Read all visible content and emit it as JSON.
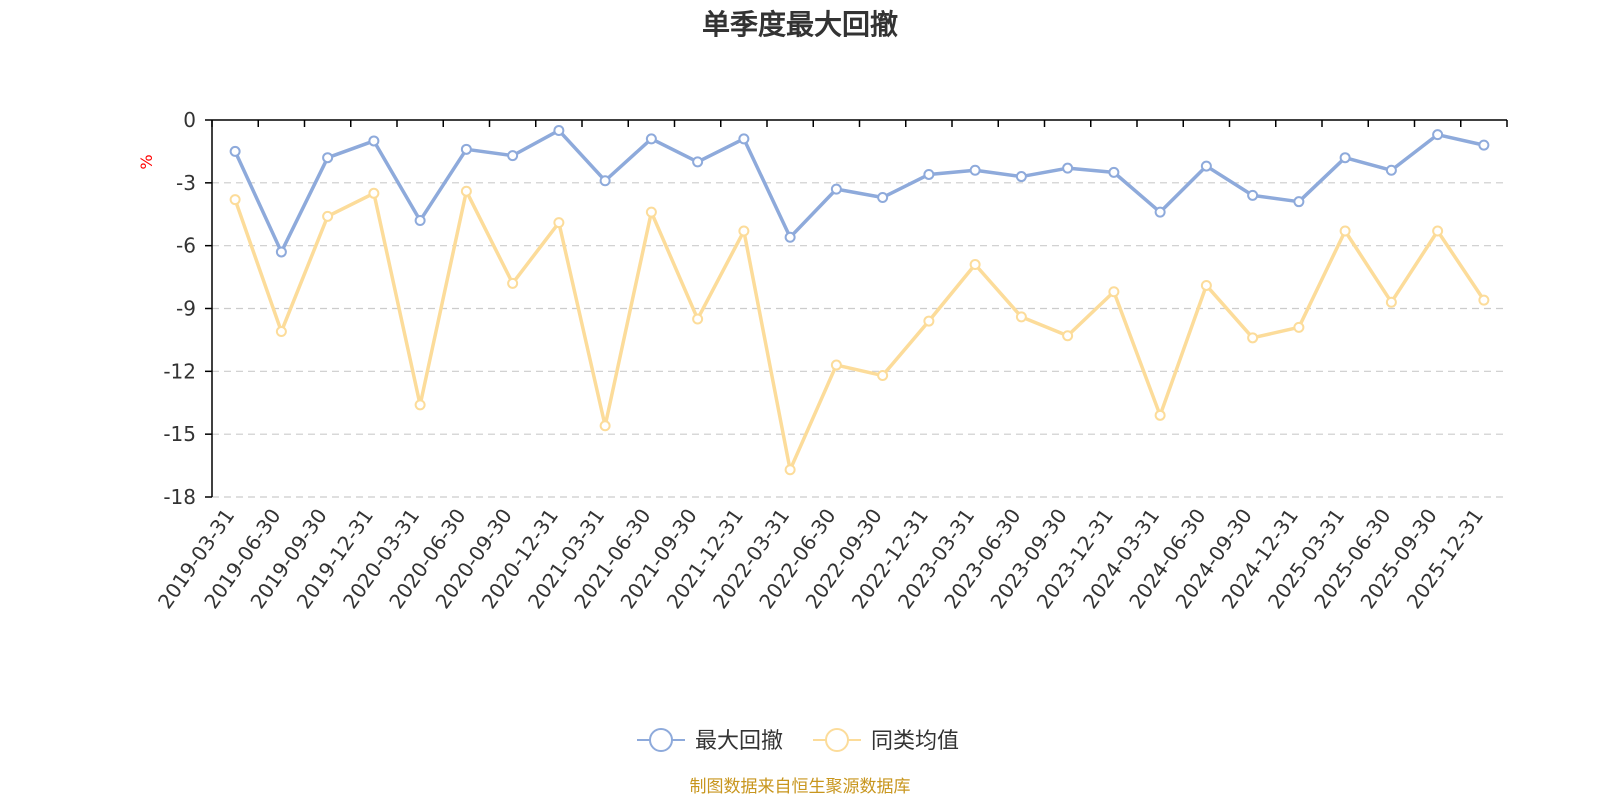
{
  "chart_data": {
    "type": "line",
    "title": "单季度最大回撤",
    "ylabel": "%",
    "ylim": [
      -18,
      0
    ],
    "yticks": [
      0,
      -3,
      -6,
      -9,
      -12,
      -15,
      -18
    ],
    "grid": true,
    "legend_position": "bottom-center",
    "categories": [
      "2019-03-31",
      "2019-06-30",
      "2019-09-30",
      "2019-12-31",
      "2020-03-31",
      "2020-06-30",
      "2020-09-30",
      "2020-12-31",
      "2021-03-31",
      "2021-06-30",
      "2021-09-30",
      "2021-12-31",
      "2022-03-31",
      "2022-06-30",
      "2022-09-30",
      "2022-12-31",
      "2023-03-31",
      "2023-06-30",
      "2023-09-30",
      "2023-12-31",
      "2024-03-31",
      "2024-06-30",
      "2024-09-30",
      "2024-12-31",
      "2025-03-31",
      "2025-06-30",
      "2025-09-30",
      "2025-12-31"
    ],
    "series": [
      {
        "name": "最大回撤",
        "color": "#8eaadb",
        "values": [
          -1.5,
          -6.3,
          -1.8,
          -1.0,
          -4.8,
          -1.4,
          -1.7,
          -0.5,
          -2.9,
          -0.9,
          -2.0,
          -0.9,
          -5.6,
          -3.3,
          -3.7,
          -2.6,
          -2.4,
          -2.7,
          -2.3,
          -2.5,
          -4.4,
          -2.2,
          -3.6,
          -3.9,
          -1.8,
          -2.4,
          -0.7,
          -1.2
        ]
      },
      {
        "name": "同类均值",
        "color": "#fcdc9a",
        "values": [
          -3.8,
          -10.1,
          -4.6,
          -3.5,
          -13.6,
          -3.4,
          -7.8,
          -4.9,
          -14.6,
          -4.4,
          -9.5,
          -5.3,
          -16.7,
          -11.7,
          -12.2,
          -9.6,
          -6.9,
          -9.4,
          -10.3,
          -8.2,
          -14.1,
          -7.9,
          -10.4,
          -9.9,
          -5.3,
          -8.7,
          -5.3,
          -8.6
        ]
      }
    ]
  },
  "colors": {
    "axis": "#000000",
    "grid": "#cccccc",
    "unit_label": "#ff0000",
    "footer": "#c8961e"
  },
  "footer": {
    "source": "制图数据来自恒生聚源数据库"
  }
}
